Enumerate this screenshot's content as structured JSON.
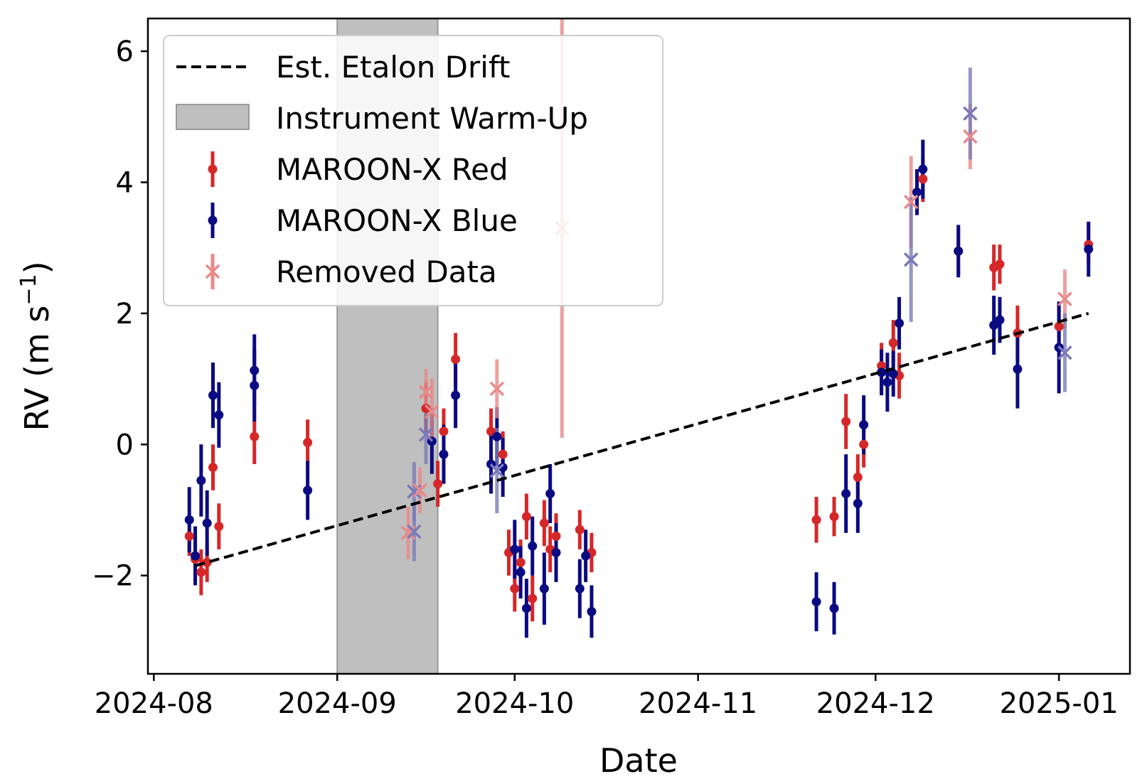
{
  "chart_data": {
    "type": "scatter",
    "title": "",
    "xlabel": "Date",
    "ylabel": "RV (m s",
    "ylabel_sup": "−1",
    "ylabel_close": ")",
    "x_scale": "date",
    "xlim": [
      "2024-07-31",
      "2025-01-13"
    ],
    "ylim": [
      -3.5,
      6.5
    ],
    "x_ticks": [
      "2024-08-01",
      "2024-09-01",
      "2024-10-01",
      "2024-11-01",
      "2024-12-01",
      "2025-01-01"
    ],
    "x_tick_labels": [
      "2024-08",
      "2024-09",
      "2024-10",
      "2024-11",
      "2024-12",
      "2025-01"
    ],
    "y_ticks": [
      -2,
      0,
      2,
      4,
      6
    ],
    "y_tick_labels": [
      "−2",
      "0",
      "2",
      "4",
      "6"
    ],
    "grid": false,
    "legend_position": "top-left",
    "colors": {
      "red": "#d62728",
      "blue": "#0a0a82",
      "removed_red": "#e88a8a",
      "removed_blue": "#7a7ab8",
      "warmup": "#bfbfbf",
      "drift": "#000000"
    },
    "legend": [
      {
        "key": "drift",
        "label": "Est. Etalon Drift"
      },
      {
        "key": "warmup",
        "label": "Instrument Warm-Up"
      },
      {
        "key": "red",
        "label": "MAROON-X Red"
      },
      {
        "key": "blue",
        "label": "MAROON-X Blue"
      },
      {
        "key": "removed",
        "label": "Removed Data"
      }
    ],
    "warmup_span": [
      "2024-09-01",
      "2024-09-18"
    ],
    "drift_line": {
      "x": [
        "2024-08-08",
        "2025-01-06"
      ],
      "y": [
        -1.85,
        2.0
      ]
    },
    "series": [
      {
        "name": "MAROON-X Red",
        "color_key": "red",
        "points": [
          {
            "x": "2024-08-07",
            "y": -1.4,
            "err": 0.3
          },
          {
            "x": "2024-08-08",
            "y": -1.75,
            "err": 0.3
          },
          {
            "x": "2024-08-09",
            "y": -1.95,
            "err": 0.35
          },
          {
            "x": "2024-08-10",
            "y": -1.8,
            "err": 0.3
          },
          {
            "x": "2024-08-11",
            "y": -0.35,
            "err": 0.35
          },
          {
            "x": "2024-08-12",
            "y": -1.25,
            "err": 0.35
          },
          {
            "x": "2024-08-18",
            "y": 0.12,
            "err": 0.42
          },
          {
            "x": "2024-08-27",
            "y": 0.03,
            "err": 0.35
          },
          {
            "x": "2024-09-16",
            "y": 0.55,
            "err": 0.4
          },
          {
            "x": "2024-09-18",
            "y": -0.6,
            "err": 0.35
          },
          {
            "x": "2024-09-19",
            "y": 0.2,
            "err": 0.35
          },
          {
            "x": "2024-09-21",
            "y": 1.3,
            "err": 0.4
          },
          {
            "x": "2024-09-27",
            "y": 0.2,
            "err": 0.35
          },
          {
            "x": "2024-09-29",
            "y": -0.15,
            "err": 0.35
          },
          {
            "x": "2024-09-30",
            "y": -1.65,
            "err": 0.35
          },
          {
            "x": "2024-10-01",
            "y": -2.2,
            "err": 0.35
          },
          {
            "x": "2024-10-02",
            "y": -1.8,
            "err": 0.35
          },
          {
            "x": "2024-10-03",
            "y": -1.1,
            "err": 0.35
          },
          {
            "x": "2024-10-04",
            "y": -2.35,
            "err": 0.35
          },
          {
            "x": "2024-10-06",
            "y": -1.2,
            "err": 0.35
          },
          {
            "x": "2024-10-07",
            "y": -1.6,
            "err": 0.35
          },
          {
            "x": "2024-10-08",
            "y": -1.4,
            "err": 0.35
          },
          {
            "x": "2024-10-12",
            "y": -1.3,
            "err": 0.3
          },
          {
            "x": "2024-10-14",
            "y": -1.65,
            "err": 0.3
          },
          {
            "x": "2024-11-21",
            "y": -1.15,
            "err": 0.35
          },
          {
            "x": "2024-11-24",
            "y": -1.1,
            "err": 0.3
          },
          {
            "x": "2024-11-26",
            "y": 0.35,
            "err": 0.42
          },
          {
            "x": "2024-11-28",
            "y": -0.5,
            "err": 0.35
          },
          {
            "x": "2024-11-29",
            "y": 0.0,
            "err": 0.35
          },
          {
            "x": "2024-12-02",
            "y": 1.2,
            "err": 0.35
          },
          {
            "x": "2024-12-04",
            "y": 1.55,
            "err": 0.35
          },
          {
            "x": "2024-12-05",
            "y": 1.05,
            "err": 0.35
          },
          {
            "x": "2024-12-09",
            "y": 4.05,
            "err": 0.35
          },
          {
            "x": "2024-12-15",
            "y": 2.95,
            "err": 0.35
          },
          {
            "x": "2024-12-21",
            "y": 2.7,
            "err": 0.35
          },
          {
            "x": "2024-12-22",
            "y": 2.75,
            "err": 0.3
          },
          {
            "x": "2024-12-25",
            "y": 1.7,
            "err": 0.42
          },
          {
            "x": "2025-01-01",
            "y": 1.8,
            "err": 0.35
          },
          {
            "x": "2025-01-06",
            "y": 3.05,
            "err": 0.3
          }
        ]
      },
      {
        "name": "MAROON-X Blue",
        "color_key": "blue",
        "points": [
          {
            "x": "2024-08-07",
            "y": -1.15,
            "err": 0.5
          },
          {
            "x": "2024-08-08",
            "y": -1.7,
            "err": 0.45
          },
          {
            "x": "2024-08-09",
            "y": -0.55,
            "err": 0.55
          },
          {
            "x": "2024-08-10",
            "y": -1.2,
            "err": 0.5
          },
          {
            "x": "2024-08-11",
            "y": 0.75,
            "err": 0.5
          },
          {
            "x": "2024-08-12",
            "y": 0.45,
            "err": 0.5
          },
          {
            "x": "2024-08-18",
            "y": 0.9,
            "err": 0.55
          },
          {
            "x": "2024-08-18",
            "y": 1.13,
            "err": 0.55
          },
          {
            "x": "2024-08-27",
            "y": -0.7,
            "err": 0.45
          },
          {
            "x": "2024-09-17",
            "y": 0.05,
            "err": 0.5
          },
          {
            "x": "2024-09-19",
            "y": -0.15,
            "err": 0.45
          },
          {
            "x": "2024-09-21",
            "y": 0.75,
            "err": 0.5
          },
          {
            "x": "2024-09-27",
            "y": -0.3,
            "err": 0.45
          },
          {
            "x": "2024-09-28",
            "y": 0.12,
            "err": 0.45
          },
          {
            "x": "2024-09-29",
            "y": -0.35,
            "err": 0.45
          },
          {
            "x": "2024-10-01",
            "y": -1.6,
            "err": 0.45
          },
          {
            "x": "2024-10-02",
            "y": -1.95,
            "err": 0.4
          },
          {
            "x": "2024-10-03",
            "y": -2.5,
            "err": 0.45
          },
          {
            "x": "2024-10-04",
            "y": -1.55,
            "err": 0.45
          },
          {
            "x": "2024-10-06",
            "y": -2.2,
            "err": 0.55
          },
          {
            "x": "2024-10-07",
            "y": -0.75,
            "err": 0.45
          },
          {
            "x": "2024-10-08",
            "y": -1.65,
            "err": 0.45
          },
          {
            "x": "2024-10-12",
            "y": -2.2,
            "err": 0.45
          },
          {
            "x": "2024-10-13",
            "y": -1.7,
            "err": 0.4
          },
          {
            "x": "2024-10-14",
            "y": -2.55,
            "err": 0.4
          },
          {
            "x": "2024-11-21",
            "y": -2.4,
            "err": 0.45
          },
          {
            "x": "2024-11-24",
            "y": -2.5,
            "err": 0.4
          },
          {
            "x": "2024-11-26",
            "y": -0.75,
            "err": 0.6
          },
          {
            "x": "2024-11-28",
            "y": -0.9,
            "err": 0.45
          },
          {
            "x": "2024-11-29",
            "y": 0.3,
            "err": 0.45
          },
          {
            "x": "2024-12-02",
            "y": 1.1,
            "err": 0.35
          },
          {
            "x": "2024-12-03",
            "y": 0.95,
            "err": 0.45
          },
          {
            "x": "2024-12-04",
            "y": 1.08,
            "err": 0.35
          },
          {
            "x": "2024-12-05",
            "y": 1.85,
            "err": 0.4
          },
          {
            "x": "2024-12-08",
            "y": 3.85,
            "err": 0.35
          },
          {
            "x": "2024-12-09",
            "y": 4.2,
            "err": 0.45
          },
          {
            "x": "2024-12-15",
            "y": 2.95,
            "err": 0.4
          },
          {
            "x": "2024-12-21",
            "y": 1.82,
            "err": 0.45
          },
          {
            "x": "2024-12-22",
            "y": 1.9,
            "err": 0.35
          },
          {
            "x": "2024-12-25",
            "y": 1.15,
            "err": 0.6
          },
          {
            "x": "2025-01-01",
            "y": 1.48,
            "err": 0.7
          },
          {
            "x": "2025-01-06",
            "y": 2.98,
            "err": 0.42
          }
        ]
      },
      {
        "name": "Removed Data",
        "color_key": "removed",
        "points": [
          {
            "x": "2024-09-13",
            "y": -1.35,
            "err": 0.4,
            "band": "red"
          },
          {
            "x": "2024-09-14",
            "y": -0.72,
            "err": 0.45,
            "band": "blue"
          },
          {
            "x": "2024-09-14",
            "y": -1.33,
            "err": 0.45,
            "band": "blue"
          },
          {
            "x": "2024-09-15",
            "y": -0.7,
            "err": 0.35,
            "band": "red"
          },
          {
            "x": "2024-09-16",
            "y": 0.8,
            "err": 0.35,
            "band": "red"
          },
          {
            "x": "2024-09-16",
            "y": 0.15,
            "err": 0.45,
            "band": "blue"
          },
          {
            "x": "2024-09-17",
            "y": 0.5,
            "err": 0.5,
            "band": "red"
          },
          {
            "x": "2024-09-28",
            "y": 0.85,
            "err": 0.45,
            "band": "red"
          },
          {
            "x": "2024-09-28",
            "y": -0.4,
            "err": 0.65,
            "band": "blue"
          },
          {
            "x": "2024-10-09",
            "y": 3.3,
            "err": 3.2,
            "band": "red"
          },
          {
            "x": "2024-12-07",
            "y": 3.7,
            "err": 0.7,
            "band": "red"
          },
          {
            "x": "2024-12-07",
            "y": 2.82,
            "err": 0.95,
            "band": "blue"
          },
          {
            "x": "2024-12-17",
            "y": 4.7,
            "err": 0.5,
            "band": "red"
          },
          {
            "x": "2024-12-17",
            "y": 5.05,
            "err": 0.7,
            "band": "blue"
          },
          {
            "x": "2025-01-02",
            "y": 2.22,
            "err": 0.45,
            "band": "red"
          },
          {
            "x": "2025-01-02",
            "y": 1.4,
            "err": 0.6,
            "band": "blue"
          }
        ]
      }
    ]
  }
}
